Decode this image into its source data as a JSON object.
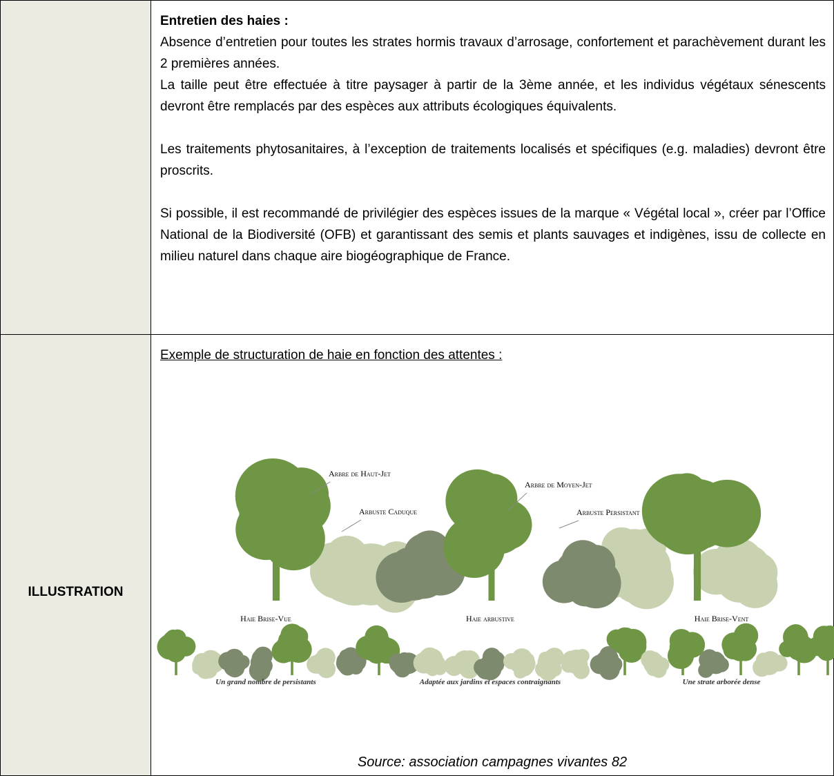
{
  "table": {
    "rows": [
      {
        "heading": "Entretien des haies :",
        "paragraphs": [
          "Absence d’entretien pour toutes les strates hormis travaux d’arrosage, confortement et parachèvement durant les 2 premières années.",
          "La taille peut être effectuée à titre paysager à partir de la 3ème année, et les individus végétaux sénescents devront être remplacés par des espèces aux attributs écologiques équivalents.",
          "Les traitements phytosanitaires, à l’exception de traitements localisés et spécifiques (e.g. maladies) devront être proscrits.",
          "Si possible, il est recommandé de privilégier des espèces issues de la marque « Végétal local », créer par l’Office National de la Biodiversité (OFB) et garantissant des semis et plants sauvages et indigènes, issu de collecte en milieu naturel dans chaque aire biogéographique de France."
        ]
      },
      {
        "label": "ILLUSTRATION",
        "heading": "Exemple de structuration de haie en fonction des attentes :",
        "figure": {
          "labels": [
            "Arbre de Haut-Jet",
            "Arbuste Caduque",
            "Arbre de Moyen-Jet",
            "Arbuste Persistant"
          ],
          "hedges": [
            {
              "name": "Haie Brise-Vue",
              "caption": "Un grand nombre de persistants"
            },
            {
              "name": "Haie arbustive",
              "caption": "Adaptée aux jardins et espaces contraignants"
            },
            {
              "name": "Haie Brise-Vent",
              "caption": "Une strate arborée dense"
            }
          ]
        },
        "source": "Source: association campagnes vivantes 82"
      }
    ]
  }
}
